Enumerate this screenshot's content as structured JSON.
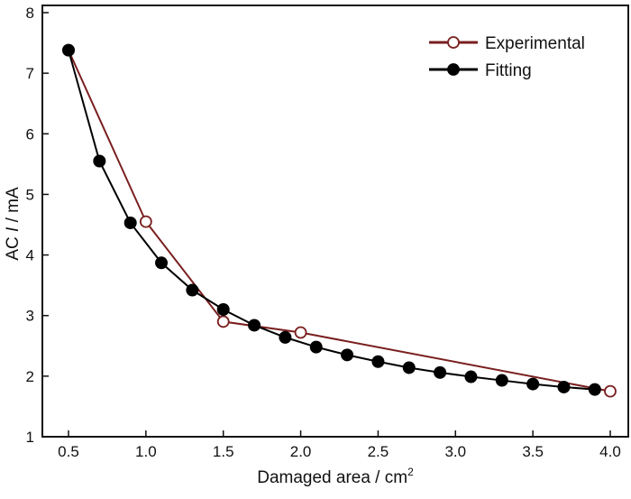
{
  "chart_data": {
    "type": "line",
    "xlabel_prefix": "Damaged area / cm",
    "xlabel_sup": "2",
    "ylabel_prefix": "AC ",
    "ylabel_italic": "I",
    "ylabel_suffix": " / mA",
    "xlim": [
      0.42,
      4.05
    ],
    "ylim": [
      1,
      8
    ],
    "xticks": [
      "0.5",
      "1.0",
      "1.5",
      "2.0",
      "2.5",
      "3.0",
      "3.5",
      "4.0"
    ],
    "yticks": [
      "1",
      "2",
      "3",
      "4",
      "5",
      "6",
      "7",
      "8"
    ],
    "grid": false,
    "legend_position": "top-right",
    "series": [
      {
        "name": "Experimental",
        "color": "#7a1f1f",
        "marker": "open-circle",
        "x": [
          0.5,
          1.0,
          1.5,
          2.0,
          4.0
        ],
        "y": [
          7.38,
          4.55,
          2.9,
          2.72,
          1.75
        ]
      },
      {
        "name": "Fitting",
        "color": "#000000",
        "marker": "filled-circle",
        "x": [
          0.5,
          0.7,
          0.9,
          1.1,
          1.3,
          1.5,
          1.7,
          1.9,
          2.1,
          2.3,
          2.5,
          2.7,
          2.9,
          3.1,
          3.3,
          3.5,
          3.7,
          3.9
        ],
        "y": [
          7.38,
          5.55,
          4.53,
          3.87,
          3.42,
          3.1,
          2.84,
          2.64,
          2.48,
          2.35,
          2.24,
          2.14,
          2.06,
          1.99,
          1.93,
          1.87,
          1.82,
          1.78
        ]
      }
    ]
  }
}
